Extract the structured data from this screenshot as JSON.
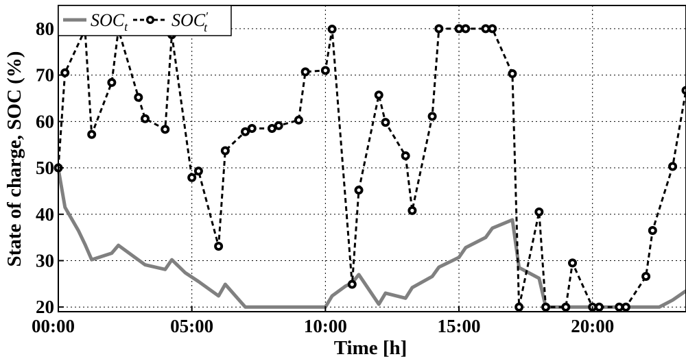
{
  "chart_data": {
    "type": "line",
    "title": "",
    "xlabel": "Time [h]",
    "ylabel": "State of charge, SOC (%)",
    "xlim": [
      0,
      23.5
    ],
    "ylim": [
      19,
      85
    ],
    "grid": true,
    "legend_position": "top-left",
    "x_ticks": [
      {
        "value": 0,
        "label": "00:00"
      },
      {
        "value": 5,
        "label": "05:00"
      },
      {
        "value": 10,
        "label": "10:00"
      },
      {
        "value": 15,
        "label": "15:00"
      },
      {
        "value": 20,
        "label": "20:00"
      }
    ],
    "y_ticks": [
      {
        "value": 20,
        "label": "20"
      },
      {
        "value": 30,
        "label": "30"
      },
      {
        "value": 40,
        "label": "40"
      },
      {
        "value": 50,
        "label": "50"
      },
      {
        "value": 60,
        "label": "60"
      },
      {
        "value": 70,
        "label": "70"
      },
      {
        "value": 80,
        "label": "80"
      }
    ],
    "series": [
      {
        "name_base": "SOC",
        "name_sub": "t",
        "name_prime": "",
        "style": "solid",
        "color": "#808080",
        "markers": false,
        "x": [
          0,
          0.25,
          0.75,
          1.0,
          1.25,
          2.0,
          2.25,
          2.75,
          3.25,
          4.0,
          4.25,
          4.75,
          5.25,
          6.0,
          6.25,
          7.0,
          7.75,
          8.25,
          9.0,
          9.5,
          10.0,
          10.25,
          10.75,
          11.0,
          11.25,
          12.0,
          12.25,
          13.0,
          13.25,
          14.0,
          14.25,
          15.0,
          15.25,
          16.0,
          16.25,
          17.0,
          17.25,
          18.0,
          18.25,
          19.0,
          20.0,
          20.5,
          21.0,
          22.0,
          22.5,
          23.0,
          23.5
        ],
        "y": [
          49.8,
          41.5,
          36.5,
          33.5,
          30.2,
          31.6,
          33.3,
          31.2,
          29.1,
          28.1,
          30.2,
          27.4,
          25.5,
          22.4,
          24.9,
          20,
          20,
          20,
          20,
          20,
          20,
          22.4,
          24.5,
          25.2,
          27,
          20.6,
          23.0,
          21.9,
          24.2,
          26.6,
          28.6,
          30.7,
          32.8,
          35.0,
          37.0,
          38.8,
          28.5,
          26.2,
          20,
          20,
          20,
          20,
          20,
          20,
          20,
          21.5,
          23.5
        ]
      },
      {
        "name_base": "SOC",
        "name_sub": "t",
        "name_prime": "′",
        "style": "dashed",
        "color": "#000000",
        "markers": true,
        "x": [
          0,
          0.25,
          1.0,
          1.25,
          2.0,
          2.25,
          3.0,
          3.25,
          4.0,
          4.25,
          5.0,
          5.25,
          6.0,
          6.25,
          7.0,
          7.25,
          8.0,
          8.25,
          9.0,
          9.25,
          10.0,
          10.25,
          11.0,
          11.25,
          12.0,
          12.25,
          13.0,
          13.25,
          14.0,
          14.25,
          15.0,
          15.25,
          16.0,
          16.25,
          17.0,
          17.25,
          18.0,
          18.25,
          19.0,
          19.25,
          20.0,
          20.25,
          21.0,
          21.25,
          22.0,
          22.25,
          23.0,
          23.5
        ],
        "y": [
          50,
          70.5,
          79.8,
          57.2,
          68.4,
          79.8,
          65.2,
          60.6,
          58.3,
          78.7,
          47.9,
          49.3,
          33.1,
          53.7,
          57.8,
          58.5,
          58.5,
          59.1,
          60.3,
          70.7,
          71.0,
          79.9,
          24.9,
          45.2,
          65.7,
          59.8,
          52.6,
          40.8,
          61.1,
          80,
          80,
          80,
          80,
          80,
          70.3,
          20,
          40.5,
          20,
          20,
          29.5,
          20,
          20,
          20,
          20,
          26.6,
          36.5,
          50.3,
          66.7
        ]
      }
    ]
  }
}
